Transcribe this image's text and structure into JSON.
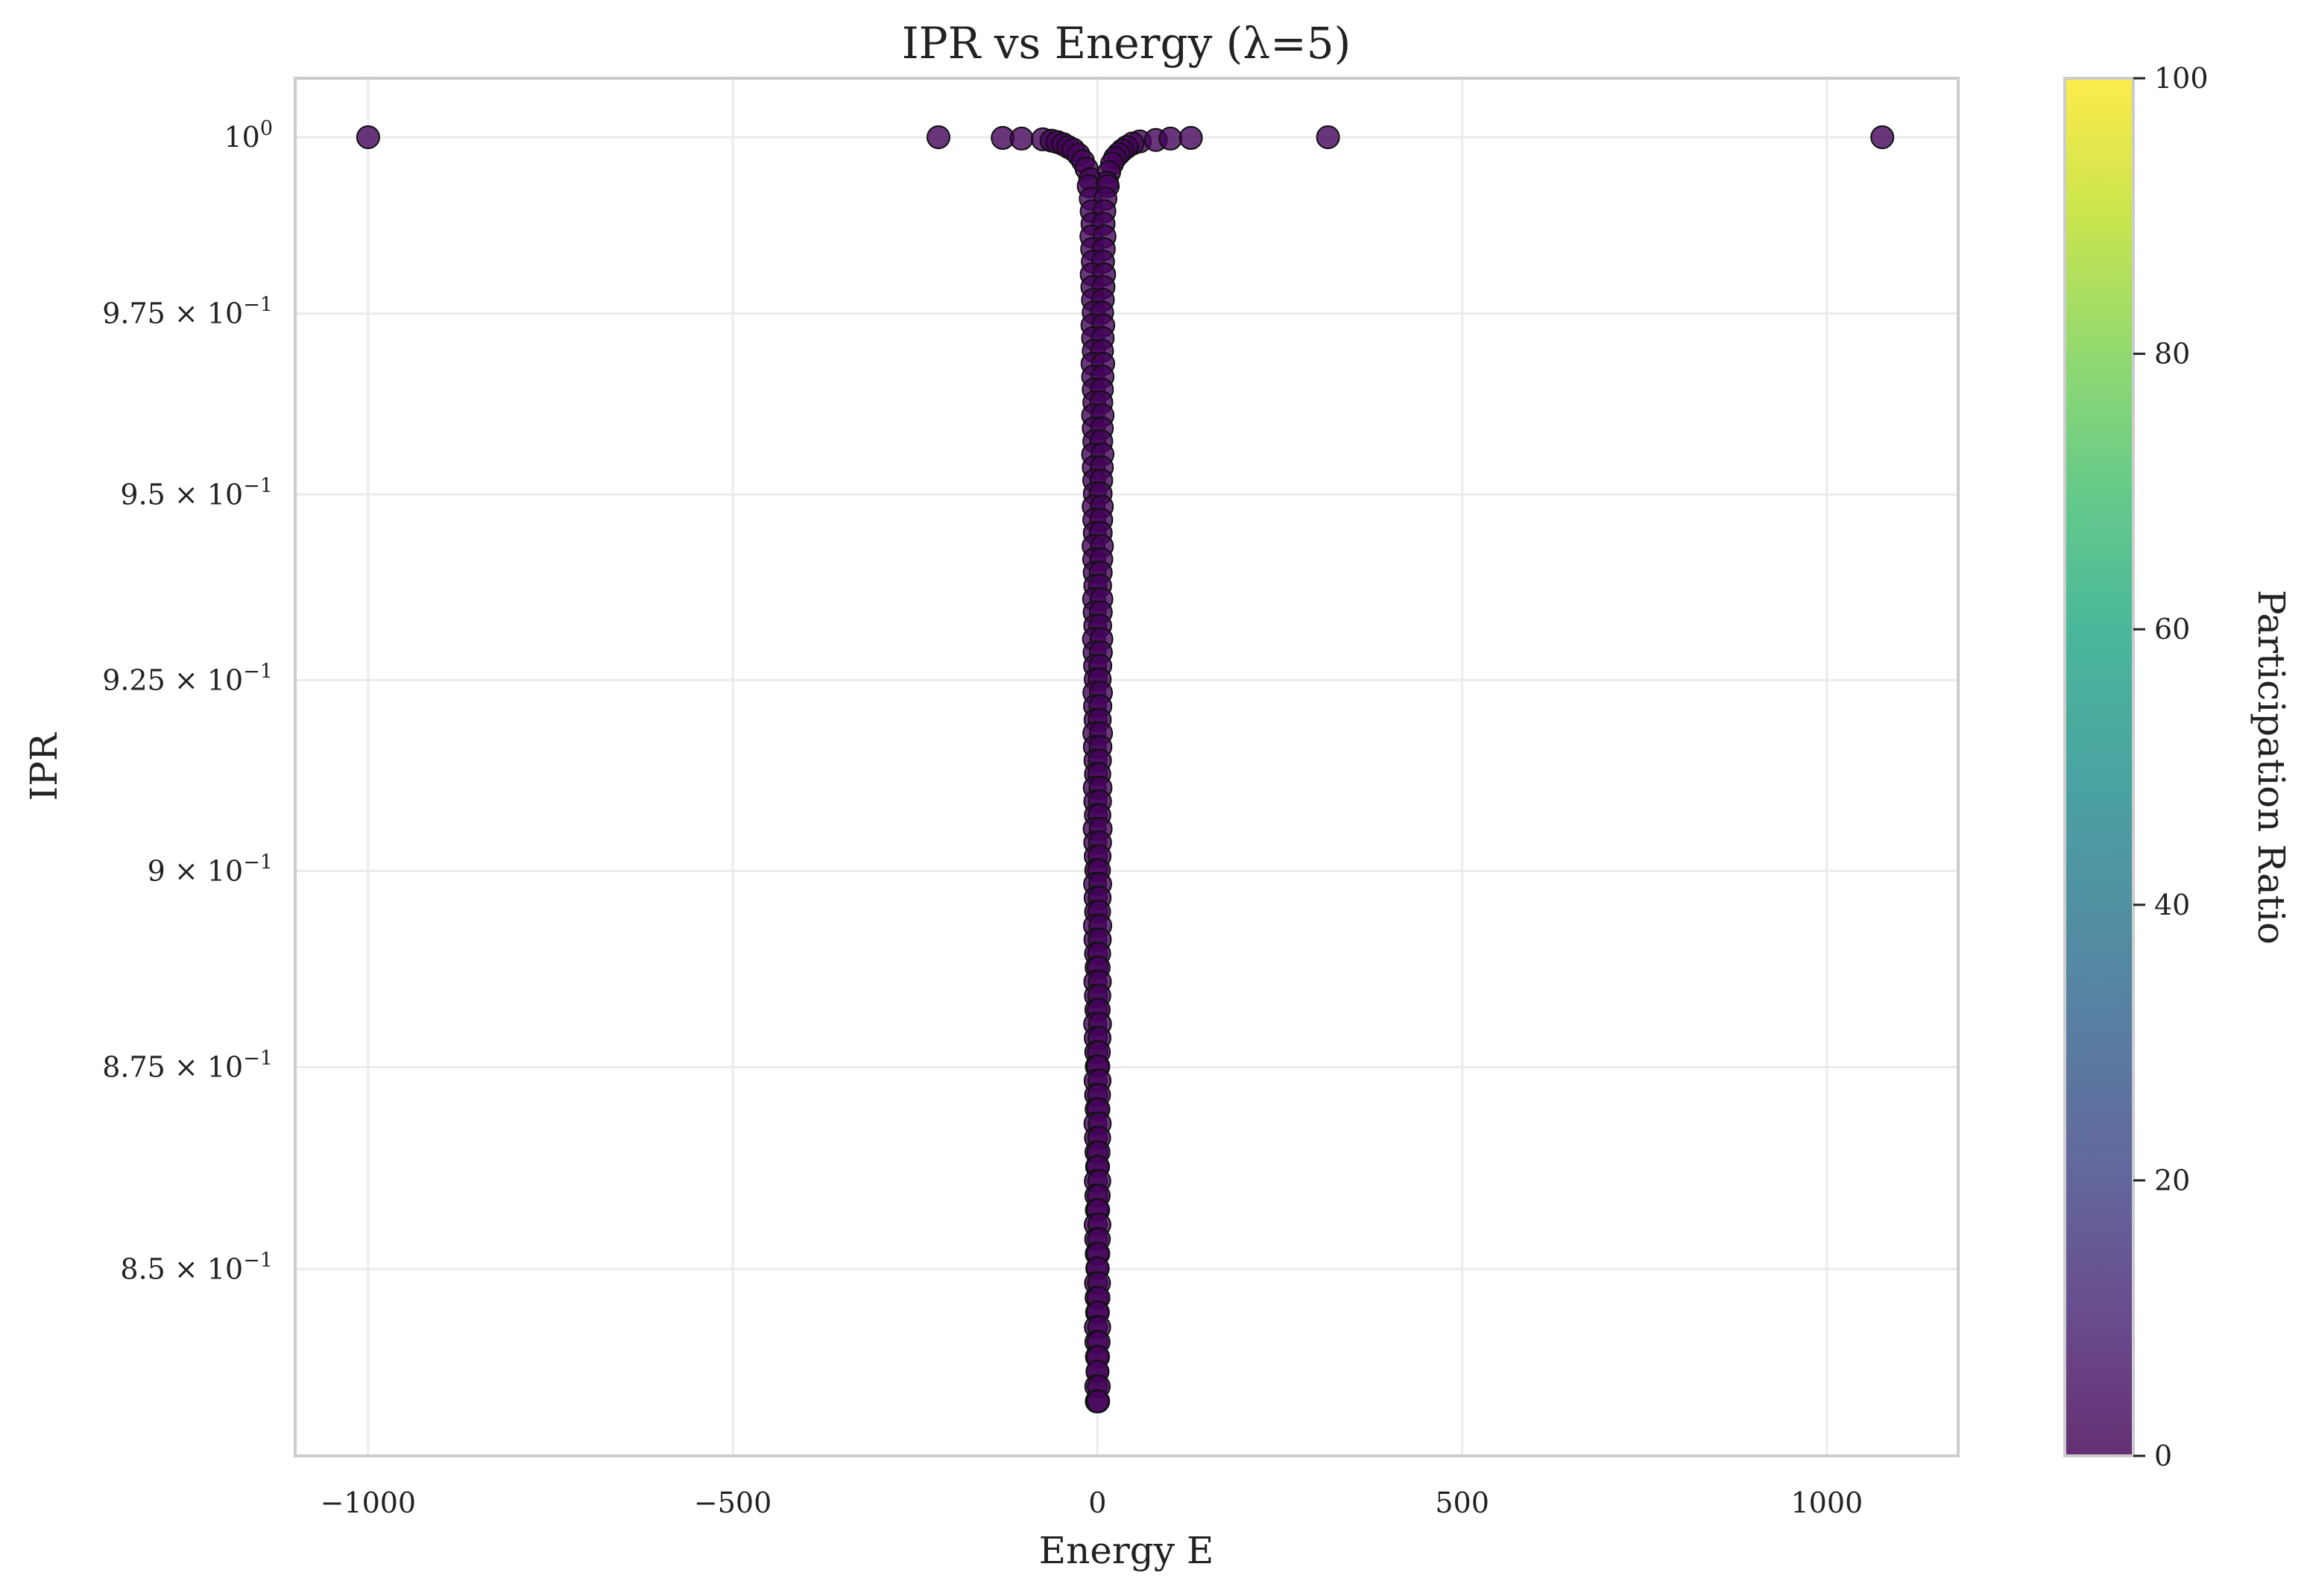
{
  "chart_data": {
    "type": "scatter",
    "title": "IPR vs Energy (λ=5)",
    "xlabel": "Energy E",
    "ylabel": "IPR",
    "xlim": [
      -1100,
      1180
    ],
    "ylim": [
      0.8275,
      1.0085
    ],
    "yscale": "log",
    "grid": true,
    "x_ticks": [
      {
        "value": -1000,
        "label": "−1000"
      },
      {
        "value": -500,
        "label": "−500"
      },
      {
        "value": 0,
        "label": "0"
      },
      {
        "value": 500,
        "label": "500"
      },
      {
        "value": 1000,
        "label": "1000"
      }
    ],
    "y_ticks": [
      {
        "value": 1.0,
        "mant": "10",
        "exp": "0"
      },
      {
        "value": 0.975,
        "mant": "9.75 × 10",
        "exp": "−1"
      },
      {
        "value": 0.95,
        "mant": "9.5 × 10",
        "exp": "−1"
      },
      {
        "value": 0.925,
        "mant": "9.25 × 10",
        "exp": "−1"
      },
      {
        "value": 0.9,
        "mant": "9 × 10",
        "exp": "−1"
      },
      {
        "value": 0.875,
        "mant": "8.75 × 10",
        "exp": "−1"
      },
      {
        "value": 0.85,
        "mant": "8.5 × 10",
        "exp": "−1"
      }
    ],
    "colorbar": {
      "label": "Participation Ratio",
      "min": 0,
      "max": 100,
      "ticks": [
        "0",
        "20",
        "40",
        "60",
        "80",
        "100"
      ],
      "colormap": "viridis"
    },
    "point_color": "#44045a",
    "isolated_points": [
      [
        -1000,
        1.0
      ],
      [
        -218,
        1.0
      ],
      [
        -130,
        0.9999
      ],
      [
        -104,
        0.9998
      ],
      [
        -75,
        0.9997
      ],
      [
        -63,
        0.9995
      ],
      [
        -55,
        0.9993
      ],
      [
        -47,
        0.999
      ],
      [
        -40,
        0.9986
      ],
      [
        -33,
        0.9982
      ],
      [
        -26,
        0.9975
      ],
      [
        -20,
        0.9966
      ],
      [
        -15,
        0.9955
      ],
      [
        -10,
        0.994
      ],
      [
        58,
        0.9994
      ],
      [
        48,
        0.9991
      ],
      [
        40,
        0.9986
      ],
      [
        34,
        0.9981
      ],
      [
        29,
        0.9976
      ],
      [
        24,
        0.997
      ],
      [
        20,
        0.9962
      ],
      [
        16,
        0.995
      ],
      [
        13,
        0.9935
      ],
      [
        80,
        0.9996
      ],
      [
        100,
        0.9998
      ],
      [
        128,
        0.9999
      ],
      [
        316,
        1.0
      ],
      [
        1076,
        1.0
      ]
    ],
    "stem": {
      "x_left_range": [
        -11,
        -1
      ],
      "x_right_range": [
        1,
        13
      ],
      "y_top": 0.993,
      "y_bottom": 0.834,
      "count_per_side": 90
    }
  }
}
